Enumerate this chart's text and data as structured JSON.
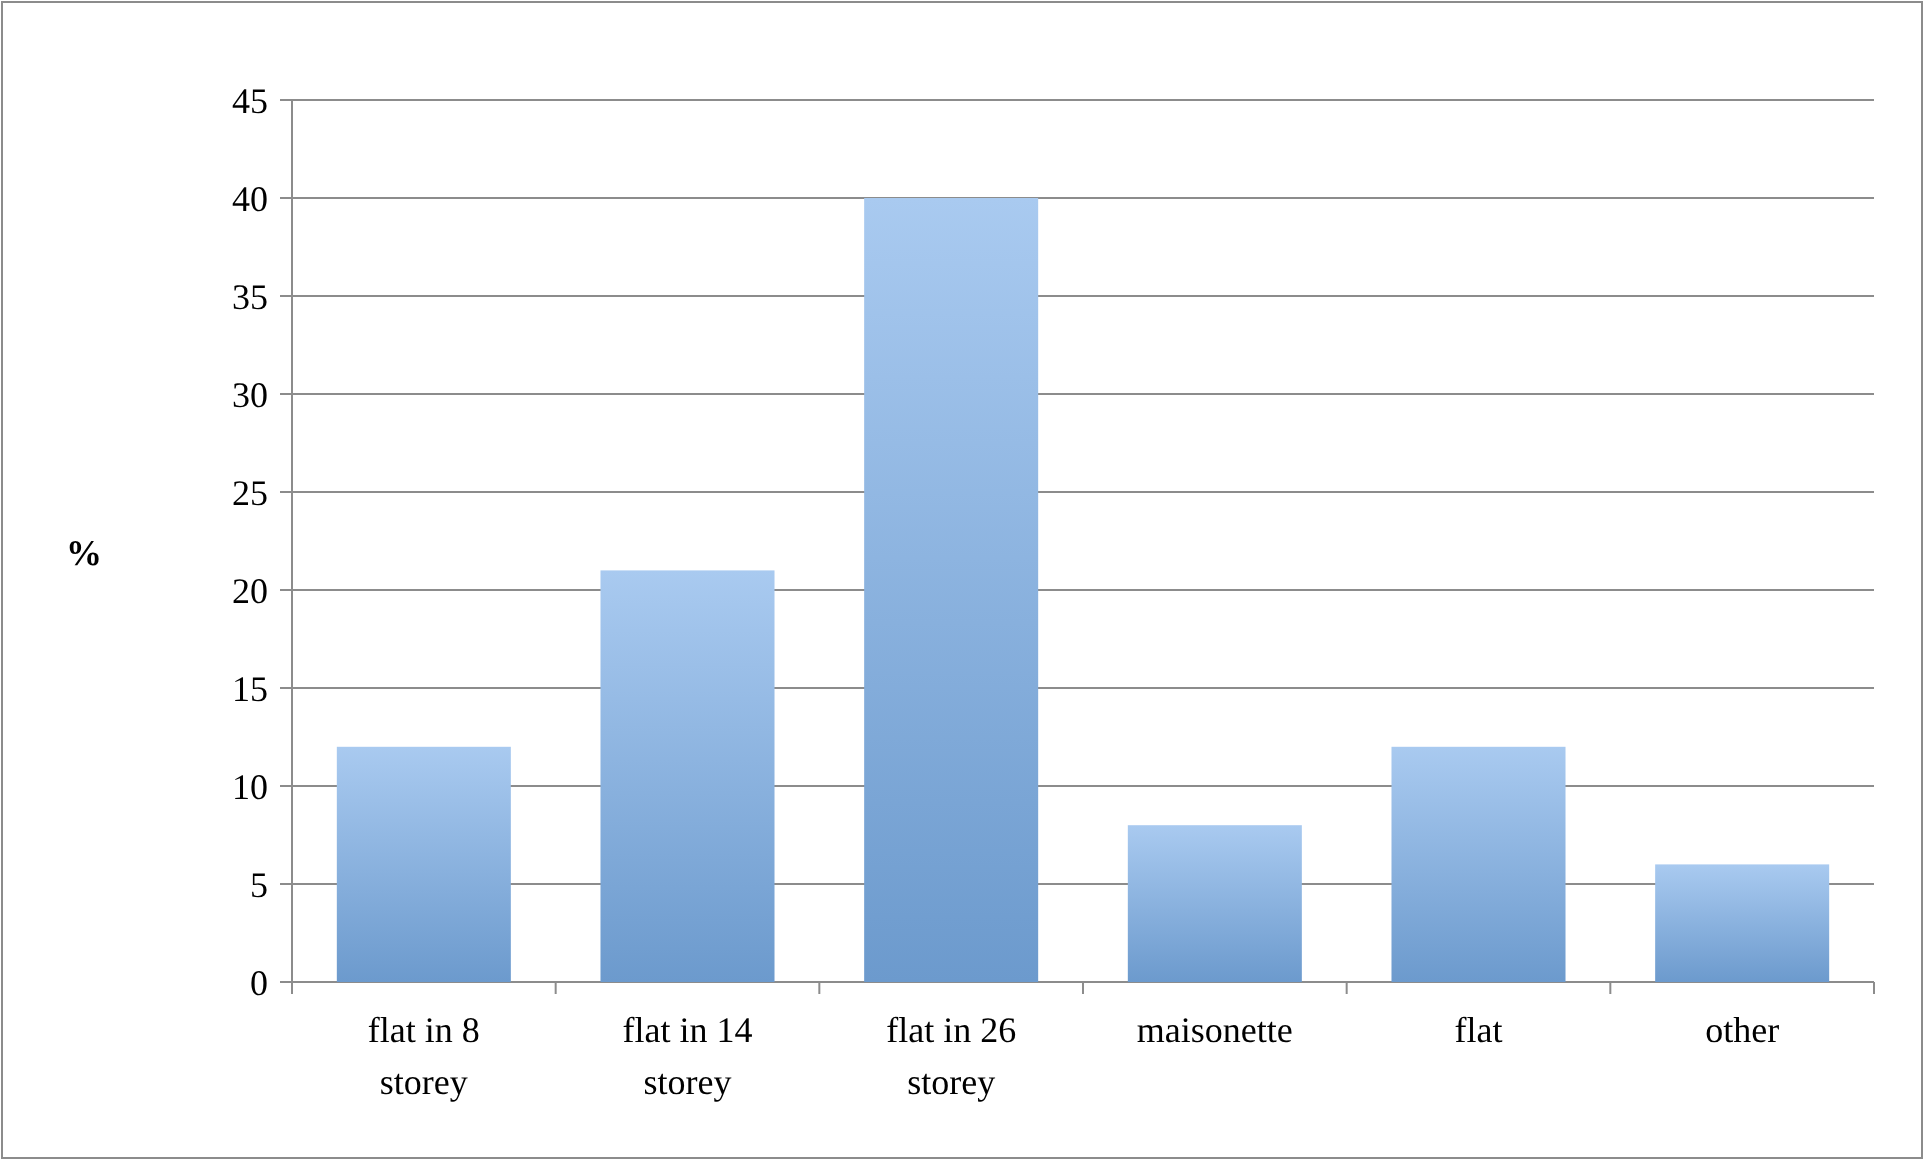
{
  "chart_data": {
    "type": "bar",
    "ylabel": "%",
    "categories": [
      "flat in 8 storey",
      "flat in 14 storey",
      "flat in 26 storey",
      "maisonette",
      "flat",
      "other"
    ],
    "values": [
      12,
      21,
      40,
      8,
      12,
      6
    ],
    "color": "#7aaee8",
    "ylim": [
      0,
      45
    ],
    "yticks": [
      0,
      5,
      10,
      15,
      20,
      25,
      30,
      35,
      40,
      45
    ],
    "grid": "y"
  }
}
